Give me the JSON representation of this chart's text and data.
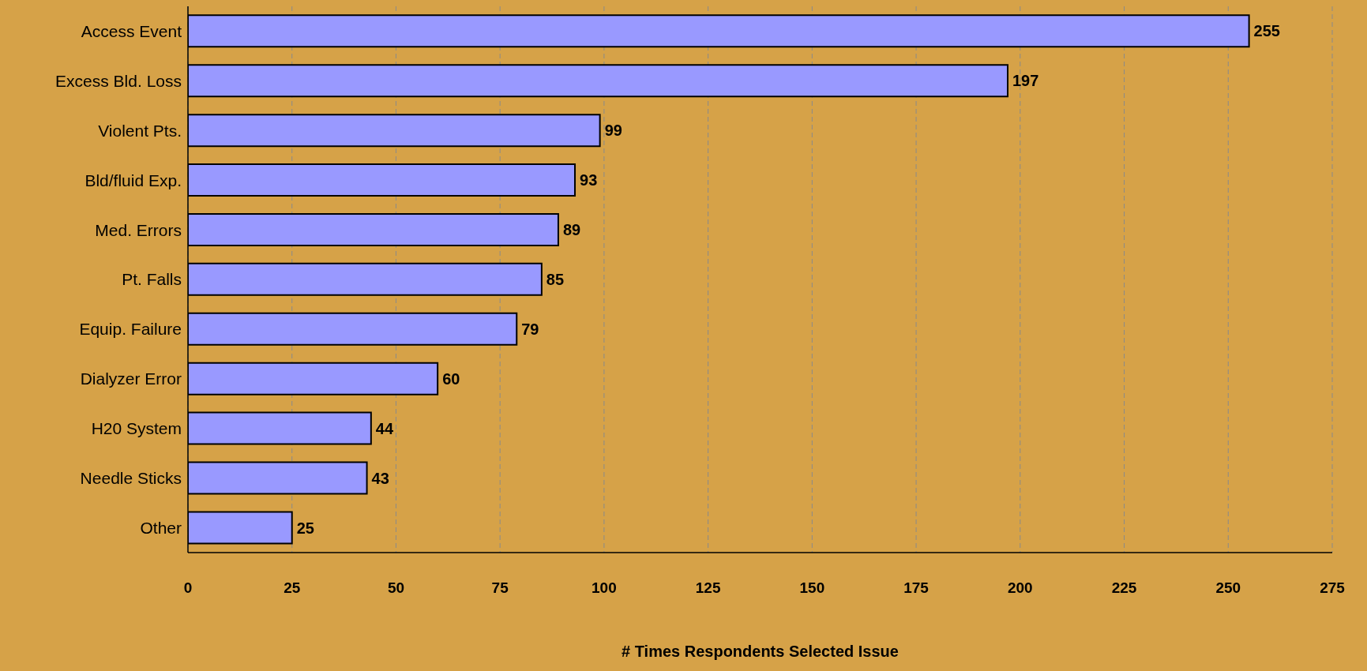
{
  "chart_data": {
    "type": "bar",
    "orientation": "horizontal",
    "xlabel": "# Times Respondents Selected Issue",
    "categories": [
      "Access Event",
      "Excess Bld. Loss",
      "Violent Pts.",
      "Bld/fluid Exp.",
      "Med. Errors",
      "Pt. Falls",
      "Equip. Failure",
      "Dialyzer Error",
      "H20 System",
      "Needle Sticks",
      "Other"
    ],
    "values": [
      255,
      197,
      99,
      93,
      89,
      85,
      79,
      60,
      44,
      43,
      25
    ],
    "color": "#9999ff",
    "xlim": [
      0,
      275
    ],
    "xticks": [
      0,
      25,
      50,
      75,
      100,
      125,
      150,
      175,
      200,
      225,
      250,
      275
    ],
    "grid": "x",
    "data_labels": true
  }
}
